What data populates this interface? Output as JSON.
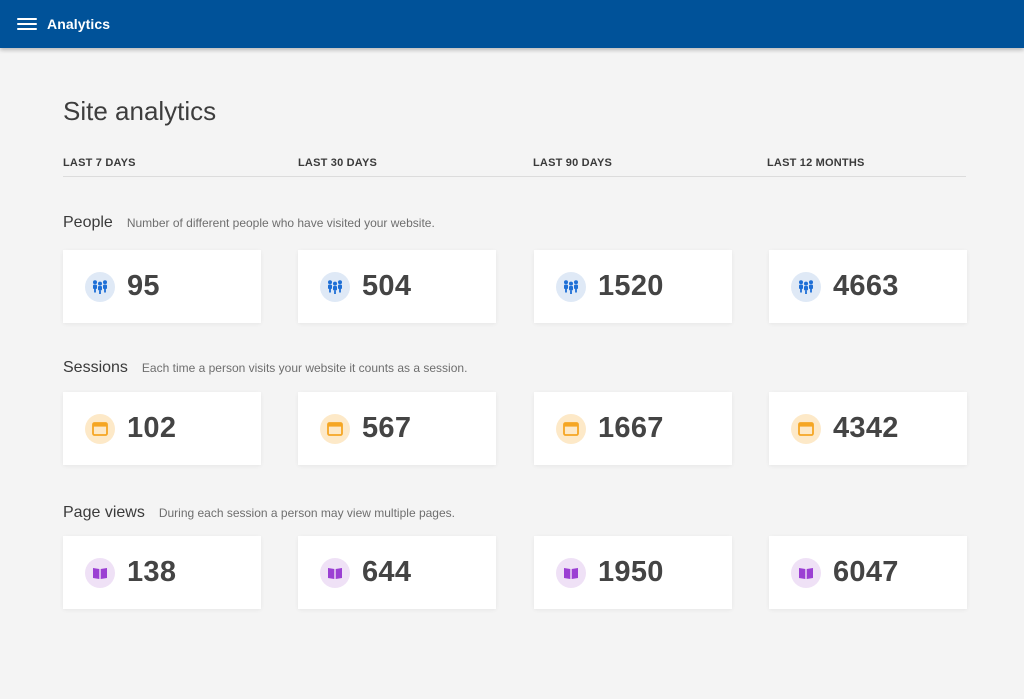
{
  "appbar": {
    "title": "Analytics",
    "color": "#005299"
  },
  "page": {
    "title": "Site analytics"
  },
  "tabs": [
    {
      "label": "LAST 7 DAYS"
    },
    {
      "label": "LAST 30 DAYS"
    },
    {
      "label": "LAST 90 DAYS"
    },
    {
      "label": "LAST 12 MONTHS"
    }
  ],
  "sections": {
    "people": {
      "title": "People",
      "description": "Number of different people who have visited your website.",
      "icon": "people-icon",
      "icon_color": "#1e6fd6",
      "values": [
        "95",
        "504",
        "1520",
        "4663"
      ]
    },
    "sessions": {
      "title": "Sessions",
      "description": "Each time a person visits your website it counts as a session.",
      "icon": "browser-window-icon",
      "icon_color": "#f5a623",
      "values": [
        "102",
        "567",
        "1667",
        "4342"
      ]
    },
    "page_views": {
      "title": "Page views",
      "description": "During each session a person may view multiple pages.",
      "icon": "open-book-icon",
      "icon_color": "#9b3fd3",
      "values": [
        "138",
        "644",
        "1950",
        "6047"
      ]
    }
  }
}
